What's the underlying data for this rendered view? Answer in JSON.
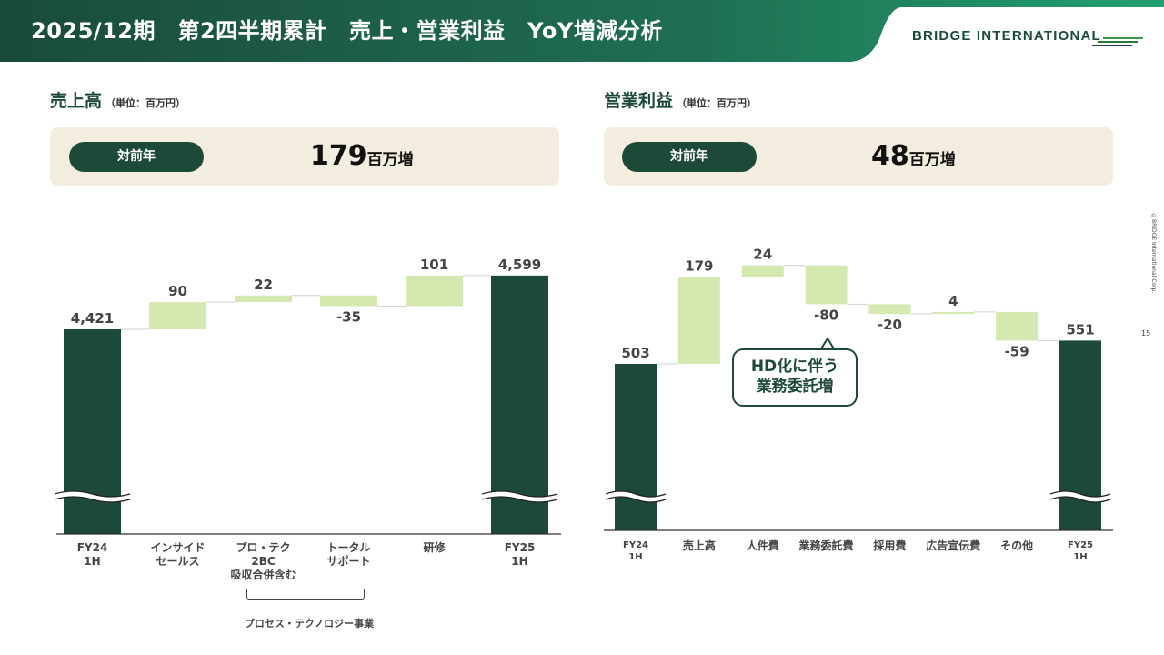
{
  "header": {
    "title": "2025/12期　第2四半期累計　売上・営業利益　YoY増減分析",
    "logo_text": "BRIDGE INTERNATIONAL"
  },
  "side": {
    "copyright": "©BRIDGE International Corp.",
    "page_number": "15"
  },
  "colors": {
    "dark_green": "#1d4a38",
    "light_green": "#d5e8b0",
    "beige": "#f3eddf"
  },
  "left": {
    "title": "売上高",
    "unit": "（単位：百万円）",
    "yoy_label": "対前年",
    "yoy_value": "179",
    "yoy_suffix": "百万増"
  },
  "right": {
    "title": "営業利益",
    "unit": "（単位：百万円）",
    "yoy_label": "対前年",
    "yoy_value": "48",
    "yoy_suffix": "百万増"
  },
  "bracket_label": "プロセス・テクノロジー事業",
  "callout": {
    "line1": "HD化に伴う",
    "line2": "業務委託増"
  },
  "chart_data": [
    {
      "type": "bar",
      "subtype": "waterfall",
      "title": "売上高",
      "unit": "百万円",
      "axis_break": true,
      "categories": [
        "FY24\n1H",
        "インサイド\nセールス",
        "プロ・テク\n2BC\n吸収合併含む",
        "トータル\nサポート",
        "研修",
        "FY25\n1H"
      ],
      "values": [
        4421,
        90,
        22,
        -35,
        101,
        4599
      ],
      "labels": [
        "4,421",
        "90",
        "22",
        "-35",
        "101",
        "4,599"
      ],
      "kinds": [
        "total",
        "delta",
        "delta",
        "delta",
        "delta",
        "total"
      ]
    },
    {
      "type": "bar",
      "subtype": "waterfall",
      "title": "営業利益",
      "unit": "百万円",
      "axis_break": true,
      "categories": [
        "FY24\n1H",
        "売上高",
        "人件費",
        "業務委託費",
        "採用費",
        "広告宣伝費",
        "その他",
        "FY25\n1H"
      ],
      "values": [
        503,
        179,
        24,
        -80,
        -20,
        4,
        -59,
        551
      ],
      "labels": [
        "503",
        "179",
        "24",
        "-80",
        "-20",
        "4",
        "-59",
        "551"
      ],
      "kinds": [
        "total",
        "delta",
        "delta",
        "delta",
        "delta",
        "delta",
        "delta",
        "total"
      ]
    }
  ]
}
